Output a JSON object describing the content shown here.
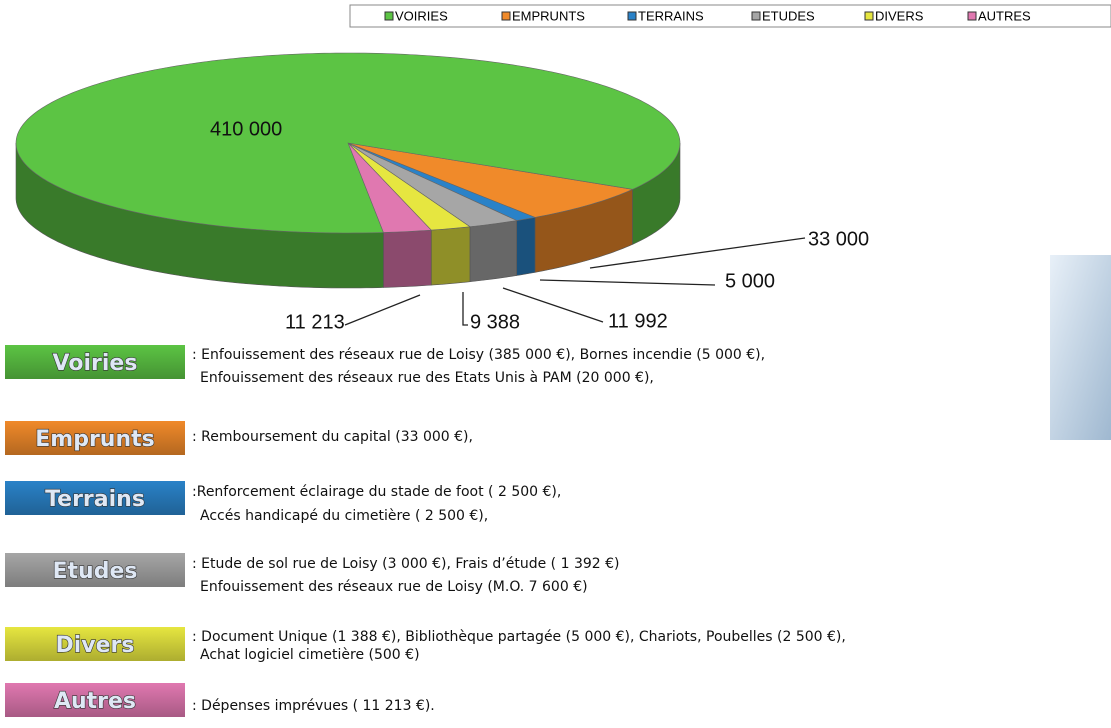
{
  "chart_data": {
    "type": "pie3d",
    "categories": [
      "VOIRIES",
      "EMPRUNTS",
      "TERRAINS",
      "ETUDES",
      "DIVERS",
      "AUTRES"
    ],
    "values": [
      410000,
      33000,
      5000,
      11992,
      9388,
      11213
    ],
    "value_labels": [
      "410 000",
      "33 000",
      "5 000",
      "11 992",
      "9 388",
      "11 213"
    ],
    "colors": [
      "#5cc444",
      "#f08a2a",
      "#2a82c8",
      "#a6a6a6",
      "#e6e640",
      "#e078b0"
    ]
  },
  "notes": [
    {
      "label": "Voiries",
      "text": [
        ": Enfouissement des réseaux rue de Loisy (385 000 €), Bornes incendie (5 000 €),",
        "Enfouissement des réseaux rue des Etats Unis à PAM (20 000 €),"
      ]
    },
    {
      "label": "Emprunts",
      "text": [
        ": Remboursement du capital (33 000 €),"
      ]
    },
    {
      "label": "Terrains",
      "text": [
        ":Renforcement éclairage du stade de foot ( 2 500 €),",
        "Accés handicapé du cimetière ( 2 500 €),"
      ]
    },
    {
      "label": "Etudes",
      "text": [
        ": Etude de sol rue de Loisy (3 000 €), Frais d’étude ( 1 392 €)",
        "Enfouissement des réseaux rue de Loisy (M.O. 7 600 €)"
      ]
    },
    {
      "label": "Divers",
      "text": [
        ": Document Unique (1 388 €), Bibliothèque partagée (5 000 €), Chariots, Poubelles (2 500 €),",
        "Achat logiciel cimetière (500 €)"
      ]
    },
    {
      "label": "Autres",
      "text": [
        ": Dépenses imprévues ( 11 213 €)."
      ]
    }
  ]
}
